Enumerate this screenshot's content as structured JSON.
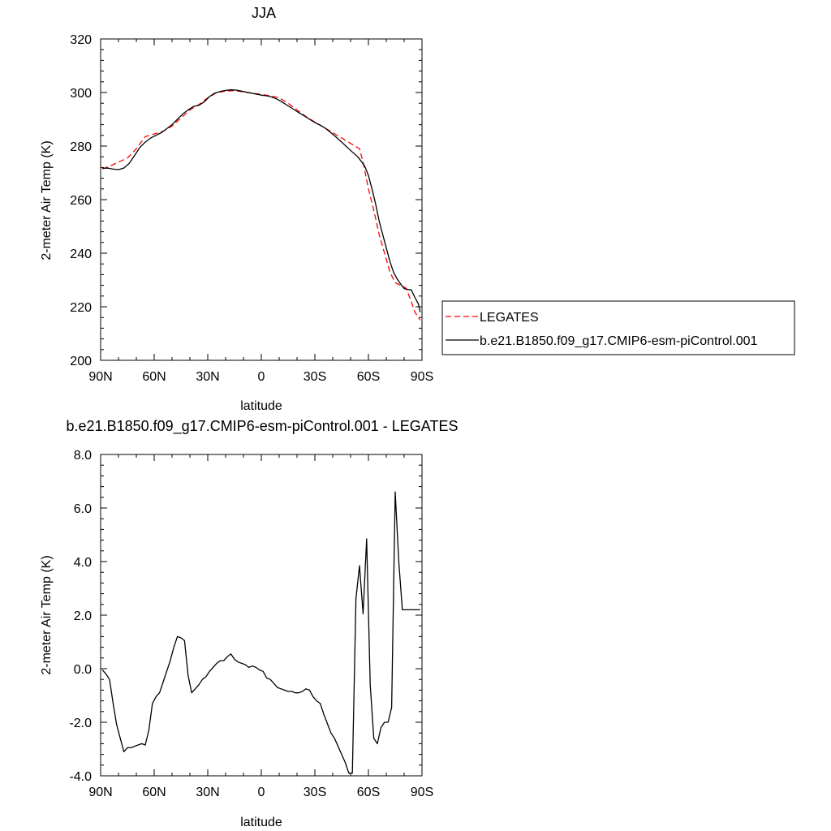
{
  "chart_data": [
    {
      "type": "line",
      "title": "JJA",
      "xlabel": "latitude",
      "ylabel": "2-meter Air Temp (K)",
      "xlim": [
        90,
        -90
      ],
      "ylim": [
        200,
        320
      ],
      "x_ticks": [
        90,
        60,
        30,
        0,
        -30,
        -60,
        -90
      ],
      "x_tick_labels": [
        "90N",
        "60N",
        "30N",
        "0",
        "30S",
        "60S",
        "90S"
      ],
      "y_ticks": [
        200,
        220,
        240,
        260,
        280,
        300,
        320
      ],
      "y_tick_labels": [
        "200",
        "220",
        "240",
        "260",
        "280",
        "300",
        "320"
      ],
      "legend_position": "right",
      "series": [
        {
          "name": "LEGATES",
          "style": "dashed",
          "color": "#ff0000",
          "x": [
            89,
            85,
            80,
            75,
            70,
            65,
            60,
            55,
            50,
            45,
            40,
            35,
            30,
            25,
            20,
            15,
            10,
            5,
            0,
            -5,
            -10,
            -15,
            -20,
            -25,
            -30,
            -35,
            -40,
            -45,
            -50,
            -55,
            -57,
            -60,
            -63,
            -66,
            -69,
            -72,
            -75,
            -78,
            -81,
            -84,
            -86,
            -88,
            -89
          ],
          "y": [
            271.5,
            272.5,
            274,
            275.5,
            279,
            283.5,
            284.5,
            285.5,
            287.5,
            290.5,
            293.5,
            295.5,
            298,
            300,
            300.5,
            300.7,
            300.2,
            299.7,
            299.3,
            298.8,
            298,
            296,
            293.5,
            291,
            289,
            287,
            285,
            283,
            281,
            279,
            274,
            264,
            256,
            247,
            240,
            233,
            229,
            228,
            227,
            222,
            218,
            216,
            215
          ]
        },
        {
          "name": "b.e21.B1850.f09_g17.CMIP6-esm-piControl.001",
          "style": "solid",
          "color": "#000000",
          "x": [
            89,
            86,
            83,
            80,
            77,
            74,
            71,
            68,
            65,
            62,
            59,
            56,
            53,
            50,
            47,
            44,
            41,
            38,
            35,
            32,
            29,
            26,
            23,
            20,
            17,
            14,
            11,
            8,
            5,
            2,
            0,
            -3,
            -6,
            -9,
            -12,
            -15,
            -18,
            -21,
            -24,
            -27,
            -30,
            -33,
            -36,
            -39,
            -42,
            -45,
            -48,
            -51,
            -54,
            -56,
            -58,
            -60,
            -62,
            -64,
            -66,
            -68,
            -70,
            -72,
            -74,
            -76,
            -78,
            -80,
            -82,
            -84,
            -86,
            -88,
            -89
          ],
          "y": [
            271.7,
            271.8,
            271.4,
            271.2,
            271.8,
            273.5,
            276.5,
            279.5,
            281.5,
            283,
            284,
            285,
            286.5,
            288,
            290,
            292,
            293.5,
            294.8,
            295.2,
            296.5,
            298.5,
            299.8,
            300.4,
            300.8,
            301,
            300.9,
            300.5,
            300.1,
            299.7,
            299.3,
            299,
            298.8,
            298.3,
            297.5,
            296.3,
            295,
            293.8,
            292.5,
            291.3,
            290,
            288.8,
            287.8,
            286.6,
            285,
            283.3,
            281.5,
            279.6,
            277.8,
            276,
            274.3,
            272.4,
            269,
            264,
            258.5,
            252,
            247,
            242,
            237,
            233,
            230.5,
            228.5,
            226.8,
            226.5,
            226.3,
            223.5,
            221,
            218
          ]
        }
      ]
    },
    {
      "type": "line",
      "title": "b.e21.B1850.f09_g17.CMIP6-esm-piControl.001 - LEGATES",
      "xlabel": "latitude",
      "ylabel": "2-meter Air Temp (K)",
      "xlim": [
        90,
        -90
      ],
      "ylim": [
        -4.0,
        8.0
      ],
      "x_ticks": [
        90,
        60,
        30,
        0,
        -30,
        -60,
        -90
      ],
      "x_tick_labels": [
        "90N",
        "60N",
        "30N",
        "0",
        "30S",
        "60S",
        "90S"
      ],
      "y_ticks": [
        -4.0,
        -2.0,
        0.0,
        2.0,
        4.0,
        6.0,
        8.0
      ],
      "y_tick_labels": [
        "-4.0",
        "-2.0",
        "0.0",
        "2.0",
        "4.0",
        "6.0",
        "8.0"
      ],
      "series": [
        {
          "style": "solid",
          "color": "#000000",
          "x": [
            89,
            87,
            85,
            83,
            81,
            79,
            77,
            75,
            73,
            71,
            69,
            67,
            65,
            63,
            61,
            59,
            57,
            55,
            53,
            51,
            49,
            47,
            45,
            43,
            41,
            39,
            37,
            35,
            33,
            31,
            29,
            27,
            25,
            23,
            21,
            19,
            17,
            15,
            13,
            11,
            9,
            7,
            5,
            3,
            1,
            -1,
            -3,
            -5,
            -7,
            -9,
            -11,
            -13,
            -15,
            -17,
            -19,
            -21,
            -23,
            -25,
            -27,
            -29,
            -31,
            -33,
            -35,
            -37,
            -39,
            -41,
            -43,
            -45,
            -47,
            -49,
            -51,
            -53,
            -55,
            -57,
            -59,
            -61,
            -63,
            -65,
            -67,
            -69,
            -71,
            -73,
            -75,
            -77,
            -79,
            -81,
            -83,
            -85,
            -87,
            -89
          ],
          "y": [
            -0.05,
            -0.2,
            -0.4,
            -1.3,
            -2.1,
            -2.6,
            -3.1,
            -2.95,
            -2.95,
            -2.9,
            -2.85,
            -2.8,
            -2.85,
            -2.3,
            -1.3,
            -1.05,
            -0.9,
            -0.5,
            -0.1,
            0.3,
            0.8,
            1.2,
            1.15,
            1.05,
            -0.25,
            -0.9,
            -0.75,
            -0.6,
            -0.4,
            -0.3,
            -0.1,
            0.05,
            0.2,
            0.3,
            0.3,
            0.45,
            0.55,
            0.35,
            0.25,
            0.2,
            0.15,
            0.05,
            0.1,
            0.05,
            -0.05,
            -0.1,
            -0.35,
            -0.4,
            -0.55,
            -0.7,
            -0.75,
            -0.8,
            -0.85,
            -0.85,
            -0.9,
            -0.9,
            -0.85,
            -0.75,
            -0.8,
            -1.05,
            -1.2,
            -1.3,
            -1.7,
            -2.05,
            -2.4,
            -2.6,
            -2.9,
            -3.2,
            -3.5,
            -3.9,
            -3.9,
            2.6,
            3.85,
            2.05,
            4.85,
            -0.6,
            -2.6,
            -2.8,
            -2.2,
            -2.0,
            -2.0,
            -1.45,
            6.6,
            4.0,
            2.2,
            2.2,
            2.2,
            2.2,
            2.2,
            2.2
          ]
        }
      ]
    }
  ]
}
